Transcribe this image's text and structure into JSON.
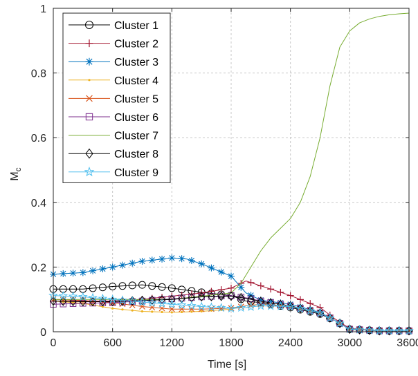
{
  "chart_data": {
    "type": "line",
    "xlabel": "Time [s]",
    "ylabel_main": "M",
    "ylabel_sub": "c",
    "xlim": [
      0,
      3600
    ],
    "ylim": [
      0,
      1
    ],
    "xticks": [
      0,
      600,
      1200,
      1800,
      2400,
      3000,
      3600
    ],
    "yticks": [
      0,
      0.2,
      0.4,
      0.6,
      0.8,
      1
    ],
    "xtick_labels": [
      "0",
      "600",
      "1200",
      "1800",
      "2400",
      "3000",
      "3600"
    ],
    "ytick_labels": [
      "0",
      "0.2",
      "0.4",
      "0.6",
      "0.8",
      "1"
    ],
    "grid": true,
    "legend_position": "top-left",
    "series": [
      {
        "name": "Cluster 1",
        "color": "#000000",
        "marker": "circle",
        "x": [
          0,
          300,
          600,
          900,
          1200,
          1500,
          1800,
          1950,
          2100,
          2400,
          2700,
          2850,
          3000,
          3300,
          3600
        ],
        "y": [
          0.132,
          0.132,
          0.14,
          0.145,
          0.135,
          0.122,
          0.112,
          0.095,
          0.09,
          0.075,
          0.055,
          0.035,
          0.008,
          0.003,
          0.003
        ]
      },
      {
        "name": "Cluster 2",
        "color": "#A2142F",
        "marker": "plus",
        "x": [
          0,
          300,
          600,
          900,
          1200,
          1500,
          1800,
          1950,
          2100,
          2400,
          2700,
          2850,
          3000,
          3300,
          3600
        ],
        "y": [
          0.095,
          0.095,
          0.095,
          0.1,
          0.11,
          0.12,
          0.135,
          0.157,
          0.142,
          0.112,
          0.075,
          0.04,
          0.01,
          0.003,
          0.003
        ]
      },
      {
        "name": "Cluster 3",
        "color": "#0072BD",
        "marker": "asterisk",
        "x": [
          0,
          300,
          600,
          900,
          1200,
          1350,
          1500,
          1800,
          1950,
          2100,
          2400,
          2700,
          2850,
          3000,
          3300,
          3600
        ],
        "y": [
          0.178,
          0.183,
          0.2,
          0.218,
          0.228,
          0.225,
          0.21,
          0.172,
          0.12,
          0.098,
          0.085,
          0.06,
          0.035,
          0.008,
          0.003,
          0.003
        ]
      },
      {
        "name": "Cluster 4",
        "color": "#EDB120",
        "marker": "dot",
        "x": [
          0,
          300,
          600,
          900,
          1200,
          1500,
          1800,
          1950,
          2100,
          2400,
          2700,
          2850,
          3000,
          3300,
          3600
        ],
        "y": [
          0.095,
          0.088,
          0.072,
          0.063,
          0.06,
          0.063,
          0.07,
          0.08,
          0.085,
          0.078,
          0.058,
          0.035,
          0.008,
          0.003,
          0.003
        ]
      },
      {
        "name": "Cluster 5",
        "color": "#D95319",
        "marker": "x",
        "x": [
          0,
          300,
          600,
          900,
          1200,
          1500,
          1800,
          1950,
          2100,
          2400,
          2700,
          2850,
          3000,
          3300,
          3600
        ],
        "y": [
          0.1,
          0.097,
          0.09,
          0.078,
          0.07,
          0.07,
          0.073,
          0.08,
          0.085,
          0.078,
          0.058,
          0.035,
          0.008,
          0.003,
          0.003
        ]
      },
      {
        "name": "Cluster 6",
        "color": "#7E2F8E",
        "marker": "square",
        "x": [
          0,
          300,
          600,
          900,
          1200,
          1500,
          1800,
          1950,
          2100,
          2400,
          2700,
          2850,
          3000,
          3300,
          3600
        ],
        "y": [
          0.085,
          0.088,
          0.09,
          0.095,
          0.102,
          0.108,
          0.112,
          0.105,
          0.095,
          0.08,
          0.058,
          0.035,
          0.008,
          0.003,
          0.003
        ]
      },
      {
        "name": "Cluster 7",
        "color": "#77AC30",
        "marker": "none",
        "x": [
          0,
          600,
          1200,
          1800,
          1900,
          2000,
          2100,
          2200,
          2300,
          2400,
          2500,
          2600,
          2700,
          2800,
          2900,
          3000,
          3100,
          3200,
          3300,
          3400,
          3500,
          3600
        ],
        "y": [
          0.1,
          0.1,
          0.1,
          0.12,
          0.15,
          0.2,
          0.25,
          0.29,
          0.32,
          0.35,
          0.4,
          0.48,
          0.6,
          0.76,
          0.88,
          0.93,
          0.955,
          0.967,
          0.975,
          0.98,
          0.983,
          0.985
        ]
      },
      {
        "name": "Cluster 8",
        "color": "#000000",
        "marker": "diamond",
        "x": [
          0,
          300,
          600,
          900,
          1200,
          1500,
          1800,
          1950,
          2100,
          2400,
          2700,
          2850,
          3000,
          3300,
          3600
        ],
        "y": [
          0.095,
          0.093,
          0.093,
          0.097,
          0.1,
          0.108,
          0.11,
          0.103,
          0.094,
          0.08,
          0.058,
          0.035,
          0.008,
          0.003,
          0.003
        ]
      },
      {
        "name": "Cluster 9",
        "color": "#4DBEEE",
        "marker": "pentagram",
        "x": [
          0,
          300,
          600,
          900,
          1200,
          1500,
          1800,
          1950,
          2100,
          2400,
          2700,
          2850,
          3000,
          3300,
          3600
        ],
        "y": [
          0.112,
          0.108,
          0.1,
          0.092,
          0.085,
          0.078,
          0.072,
          0.075,
          0.08,
          0.078,
          0.058,
          0.035,
          0.008,
          0.003,
          0.003
        ]
      }
    ]
  }
}
